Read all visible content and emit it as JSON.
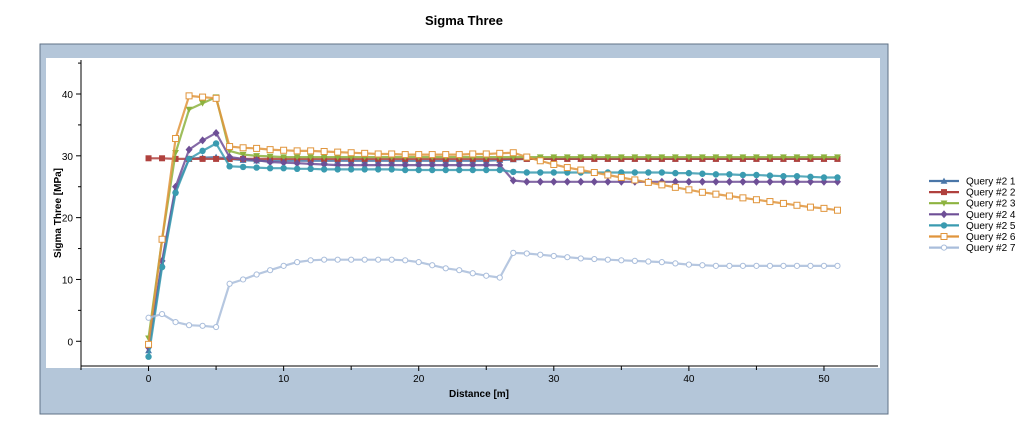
{
  "chart_data": {
    "type": "line",
    "title": "Sigma Three",
    "xlabel": "Distance [m]",
    "ylabel": "Sigma Three [MPa]",
    "xlim": [
      -5,
      54
    ],
    "ylim": [
      -4,
      45.5
    ],
    "xticks": [
      0,
      10,
      20,
      30,
      40,
      50
    ],
    "yticks": [
      0,
      10,
      20,
      30,
      40
    ],
    "grid": false,
    "legend_position": "right",
    "series": [
      {
        "name": "Query #2 1",
        "color": "#4a76a8",
        "marker": "triangle-up",
        "x": [
          0,
          1,
          2,
          3,
          4,
          5,
          6,
          7,
          8,
          9,
          10,
          11,
          12,
          13,
          14,
          15,
          16,
          17,
          18,
          19,
          20,
          21,
          22,
          23,
          24,
          25,
          26,
          27,
          28,
          29,
          30,
          31,
          32,
          33,
          34,
          35,
          36,
          37,
          38,
          39,
          40,
          41,
          42,
          43,
          44,
          45,
          46,
          47,
          48,
          49,
          50,
          51
        ],
        "y": [
          -1.5,
          12.5,
          24.5,
          29.5,
          29.7,
          29.8,
          29.5,
          29.3,
          29.2,
          29.2,
          29.2,
          29.2,
          29.2,
          29.2,
          29.2,
          29.2,
          29.2,
          29.2,
          29.2,
          29.2,
          29.2,
          29.2,
          29.2,
          29.2,
          29.2,
          29.2,
          29.3,
          29.4,
          29.5,
          29.5,
          29.5,
          29.5,
          29.5,
          29.5,
          29.5,
          29.5,
          29.5,
          29.5,
          29.5,
          29.5,
          29.5,
          29.5,
          29.5,
          29.5,
          29.5,
          29.5,
          29.5,
          29.5,
          29.5,
          29.5,
          29.5,
          29.5
        ]
      },
      {
        "name": "Query #2 2",
        "color": "#b0413e",
        "marker": "square",
        "x": [
          0,
          1,
          2,
          3,
          4,
          5,
          6,
          7,
          8,
          9,
          10,
          11,
          12,
          13,
          14,
          15,
          16,
          17,
          18,
          19,
          20,
          21,
          22,
          23,
          24,
          25,
          26,
          27,
          28,
          29,
          30,
          31,
          32,
          33,
          34,
          35,
          36,
          37,
          38,
          39,
          40,
          41,
          42,
          43,
          44,
          45,
          46,
          47,
          48,
          49,
          50,
          51
        ],
        "y": [
          29.6,
          29.6,
          29.5,
          29.5,
          29.5,
          29.5,
          29.5,
          29.5,
          29.5,
          29.5,
          29.5,
          29.5,
          29.5,
          29.5,
          29.5,
          29.5,
          29.5,
          29.5,
          29.5,
          29.5,
          29.5,
          29.5,
          29.5,
          29.5,
          29.5,
          29.5,
          29.5,
          29.5,
          29.5,
          29.5,
          29.5,
          29.5,
          29.5,
          29.5,
          29.5,
          29.5,
          29.5,
          29.5,
          29.5,
          29.5,
          29.5,
          29.5,
          29.5,
          29.5,
          29.5,
          29.5,
          29.5,
          29.5,
          29.5,
          29.5,
          29.5,
          29.5
        ]
      },
      {
        "name": "Query #2 3",
        "color": "#8db33f",
        "marker": "triangle-down",
        "x": [
          0,
          1,
          2,
          3,
          4,
          5,
          6,
          7,
          8,
          9,
          10,
          11,
          12,
          13,
          14,
          15,
          16,
          17,
          18,
          19,
          20,
          21,
          22,
          23,
          24,
          25,
          26,
          27,
          28,
          29,
          30,
          31,
          32,
          33,
          34,
          35,
          36,
          37,
          38,
          39,
          40,
          41,
          42,
          43,
          44,
          45,
          46,
          47,
          48,
          49,
          50,
          51
        ],
        "y": [
          0.5,
          16.5,
          30.5,
          37.5,
          38.5,
          39.5,
          30.8,
          30.2,
          30.0,
          29.9,
          29.8,
          29.8,
          29.8,
          29.8,
          29.8,
          29.8,
          29.8,
          29.8,
          29.8,
          29.8,
          29.8,
          29.8,
          29.8,
          29.8,
          29.8,
          29.8,
          29.8,
          29.8,
          29.8,
          29.8,
          29.8,
          29.8,
          29.8,
          29.8,
          29.8,
          29.8,
          29.8,
          29.8,
          29.8,
          29.8,
          29.8,
          29.8,
          29.8,
          29.8,
          29.8,
          29.8,
          29.8,
          29.8,
          29.8,
          29.8,
          29.8,
          29.8
        ]
      },
      {
        "name": "Query #2 4",
        "color": "#6e4f96",
        "marker": "diamond",
        "x": [
          0,
          1,
          2,
          3,
          4,
          5,
          6,
          7,
          8,
          9,
          10,
          11,
          12,
          13,
          14,
          15,
          16,
          17,
          18,
          19,
          20,
          21,
          22,
          23,
          24,
          25,
          26,
          27,
          28,
          29,
          30,
          31,
          32,
          33,
          34,
          35,
          36,
          37,
          38,
          39,
          40,
          41,
          42,
          43,
          44,
          45,
          46,
          47,
          48,
          49,
          50,
          51
        ],
        "y": [
          -1.0,
          13.0,
          25.0,
          31.0,
          32.5,
          33.7,
          29.8,
          29.5,
          29.3,
          29.0,
          28.9,
          28.8,
          28.7,
          28.6,
          28.5,
          28.5,
          28.5,
          28.5,
          28.5,
          28.5,
          28.5,
          28.5,
          28.5,
          28.5,
          28.5,
          28.5,
          28.5,
          26.0,
          25.8,
          25.8,
          25.8,
          25.8,
          25.8,
          25.8,
          25.8,
          25.8,
          25.8,
          25.8,
          25.8,
          25.8,
          25.8,
          25.8,
          25.8,
          25.8,
          25.8,
          25.8,
          25.8,
          25.8,
          25.8,
          25.8,
          25.8,
          25.8
        ]
      },
      {
        "name": "Query #2 5",
        "color": "#3a9bb0",
        "marker": "circle",
        "x": [
          0,
          1,
          2,
          3,
          4,
          5,
          6,
          7,
          8,
          9,
          10,
          11,
          12,
          13,
          14,
          15,
          16,
          17,
          18,
          19,
          20,
          21,
          22,
          23,
          24,
          25,
          26,
          27,
          28,
          29,
          30,
          31,
          32,
          33,
          34,
          35,
          36,
          37,
          38,
          39,
          40,
          41,
          42,
          43,
          44,
          45,
          46,
          47,
          48,
          49,
          50,
          51
        ],
        "y": [
          -2.5,
          12.0,
          24.0,
          29.5,
          30.8,
          32.0,
          28.3,
          28.2,
          28.1,
          28.0,
          28.0,
          27.9,
          27.9,
          27.8,
          27.8,
          27.8,
          27.8,
          27.8,
          27.8,
          27.7,
          27.7,
          27.7,
          27.7,
          27.7,
          27.7,
          27.7,
          27.7,
          27.4,
          27.3,
          27.3,
          27.3,
          27.3,
          27.3,
          27.3,
          27.3,
          27.3,
          27.3,
          27.3,
          27.3,
          27.2,
          27.2,
          27.1,
          27.0,
          27.0,
          26.9,
          26.9,
          26.8,
          26.7,
          26.7,
          26.6,
          26.5,
          26.5
        ]
      },
      {
        "name": "Query #2 6",
        "color": "#e0953c",
        "marker": "square-open",
        "x": [
          0,
          1,
          2,
          3,
          4,
          5,
          6,
          7,
          8,
          9,
          10,
          11,
          12,
          13,
          14,
          15,
          16,
          17,
          18,
          19,
          20,
          21,
          22,
          23,
          24,
          25,
          26,
          27,
          28,
          29,
          30,
          31,
          32,
          33,
          34,
          35,
          36,
          37,
          38,
          39,
          40,
          41,
          42,
          43,
          44,
          45,
          46,
          47,
          48,
          49,
          50,
          51
        ],
        "y": [
          -0.5,
          16.5,
          32.8,
          39.7,
          39.5,
          39.3,
          31.5,
          31.3,
          31.2,
          31.0,
          30.9,
          30.8,
          30.8,
          30.7,
          30.6,
          30.5,
          30.4,
          30.3,
          30.3,
          30.2,
          30.2,
          30.2,
          30.2,
          30.2,
          30.3,
          30.3,
          30.4,
          30.5,
          29.8,
          29.2,
          28.6,
          28.1,
          27.7,
          27.3,
          26.9,
          26.5,
          26.1,
          25.7,
          25.3,
          24.9,
          24.5,
          24.1,
          23.8,
          23.5,
          23.2,
          22.9,
          22.6,
          22.3,
          22.0,
          21.7,
          21.5,
          21.2
        ]
      },
      {
        "name": "Query #2 7",
        "color": "#a9bddb",
        "marker": "circle-open",
        "x": [
          0,
          1,
          2,
          3,
          4,
          5,
          6,
          7,
          8,
          9,
          10,
          11,
          12,
          13,
          14,
          15,
          16,
          17,
          18,
          19,
          20,
          21,
          22,
          23,
          24,
          25,
          26,
          27,
          28,
          29,
          30,
          31,
          32,
          33,
          34,
          35,
          36,
          37,
          38,
          39,
          40,
          41,
          42,
          43,
          44,
          45,
          46,
          47,
          48,
          49,
          50,
          51
        ],
        "y": [
          3.8,
          4.4,
          3.1,
          2.6,
          2.5,
          2.3,
          9.3,
          10.0,
          10.8,
          11.5,
          12.2,
          12.8,
          13.1,
          13.2,
          13.2,
          13.2,
          13.2,
          13.2,
          13.2,
          13.1,
          12.8,
          12.3,
          11.8,
          11.5,
          11.0,
          10.6,
          10.3,
          14.3,
          14.2,
          14.0,
          13.8,
          13.6,
          13.4,
          13.3,
          13.2,
          13.1,
          13.0,
          12.9,
          12.8,
          12.6,
          12.4,
          12.3,
          12.2,
          12.2,
          12.2,
          12.2,
          12.2,
          12.2,
          12.2,
          12.2,
          12.2,
          12.2
        ]
      }
    ]
  }
}
